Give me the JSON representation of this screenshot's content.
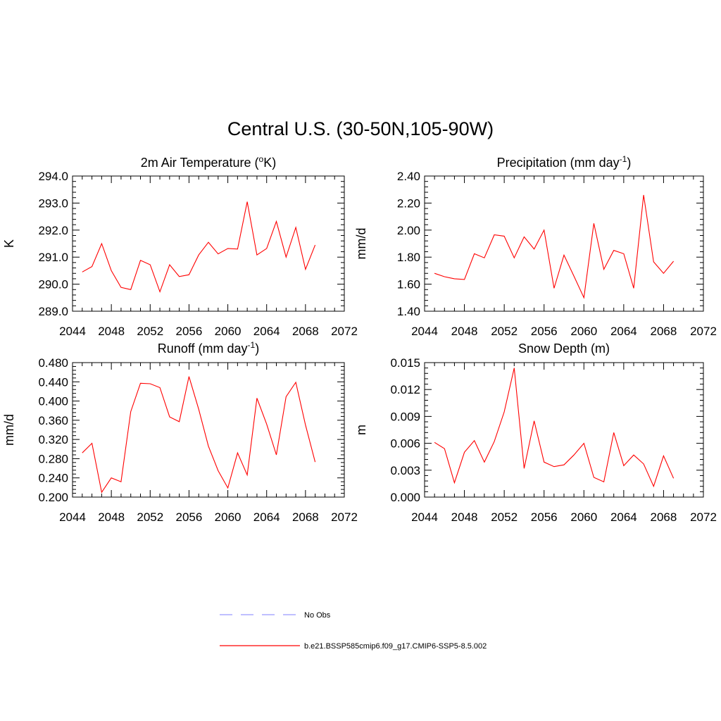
{
  "title": "Central U.S. (30-50N,105-90W)",
  "colors": {
    "model": "#ff0000",
    "obs": "#9999ff",
    "axis": "#000000"
  },
  "legend": [
    {
      "label": "No Obs",
      "style": "dashed",
      "color": "#9999ff"
    },
    {
      "label": "b.e21.BSSP585cmip6.f09_g17.CMIP6-SSP5-8.5.002",
      "style": "solid",
      "color": "#ff0000"
    }
  ],
  "chart_data": [
    {
      "type": "line",
      "title": "2m Air Temperature (",
      "title_sup": "o",
      "title_after": "K)",
      "ylabel": "K",
      "xlim": [
        2044,
        2072
      ],
      "ylim": [
        289.0,
        294.0
      ],
      "xticks": [
        2044,
        2048,
        2052,
        2056,
        2060,
        2064,
        2068,
        2072
      ],
      "yticks": [
        "289.0",
        "290.0",
        "291.0",
        "292.0",
        "293.0",
        "294.0"
      ],
      "x": [
        2045,
        2046,
        2047,
        2048,
        2049,
        2050,
        2051,
        2052,
        2053,
        2054,
        2055,
        2056,
        2057,
        2058,
        2059,
        2060,
        2061,
        2062,
        2063,
        2064,
        2065,
        2066,
        2067,
        2068,
        2069
      ],
      "series": [
        {
          "values": [
            290.45,
            290.65,
            291.5,
            290.5,
            289.88,
            289.8,
            290.88,
            290.72,
            289.72,
            290.72,
            290.28,
            290.35,
            291.08,
            291.55,
            291.12,
            291.32,
            291.3,
            293.05,
            291.08,
            291.32,
            292.32,
            291.0,
            292.1,
            290.55,
            291.45
          ]
        }
      ]
    },
    {
      "type": "line",
      "title": "Precipitation (mm day",
      "title_sup": "-1",
      "title_after": ")",
      "ylabel": "mm/d",
      "xlim": [
        2044,
        2072
      ],
      "ylim": [
        1.4,
        2.4
      ],
      "xticks": [
        2044,
        2048,
        2052,
        2056,
        2060,
        2064,
        2068,
        2072
      ],
      "yticks": [
        "1.40",
        "1.60",
        "1.80",
        "2.00",
        "2.20",
        "2.40"
      ],
      "x": [
        2045,
        2046,
        2047,
        2048,
        2049,
        2050,
        2051,
        2052,
        2053,
        2054,
        2055,
        2056,
        2057,
        2058,
        2059,
        2060,
        2061,
        2062,
        2063,
        2064,
        2065,
        2066,
        2067,
        2068,
        2069
      ],
      "series": [
        {
          "values": [
            1.68,
            1.655,
            1.64,
            1.635,
            1.825,
            1.795,
            1.965,
            1.955,
            1.795,
            1.95,
            1.86,
            2.0,
            1.57,
            1.815,
            1.66,
            1.5,
            2.05,
            1.71,
            1.85,
            1.825,
            1.57,
            2.26,
            1.765,
            1.68,
            1.77
          ]
        }
      ]
    },
    {
      "type": "line",
      "title": "Runoff (mm day",
      "title_sup": "-1",
      "title_after": ")",
      "ylabel": "mm/d",
      "xlim": [
        2044,
        2072
      ],
      "ylim": [
        0.2,
        0.48
      ],
      "xticks": [
        2044,
        2048,
        2052,
        2056,
        2060,
        2064,
        2068,
        2072
      ],
      "yticks": [
        "0.200",
        "0.240",
        "0.280",
        "0.320",
        "0.360",
        "0.400",
        "0.440",
        "0.480"
      ],
      "x": [
        2045,
        2046,
        2047,
        2048,
        2049,
        2050,
        2051,
        2052,
        2053,
        2054,
        2055,
        2056,
        2057,
        2058,
        2059,
        2060,
        2061,
        2062,
        2063,
        2064,
        2065,
        2066,
        2067,
        2068,
        2069
      ],
      "series": [
        {
          "values": [
            0.292,
            0.312,
            0.21,
            0.24,
            0.232,
            0.378,
            0.437,
            0.436,
            0.428,
            0.367,
            0.357,
            0.451,
            0.383,
            0.306,
            0.255,
            0.219,
            0.292,
            0.246,
            0.406,
            0.352,
            0.288,
            0.409,
            0.439,
            0.35,
            0.273
          ]
        }
      ]
    },
    {
      "type": "line",
      "title": "Snow Depth (m)",
      "title_sup": "",
      "title_after": "",
      "ylabel": "m",
      "xlim": [
        2044,
        2072
      ],
      "ylim": [
        0.0,
        0.015
      ],
      "xticks": [
        2044,
        2048,
        2052,
        2056,
        2060,
        2064,
        2068,
        2072
      ],
      "yticks": [
        "0.000",
        "0.003",
        "0.006",
        "0.009",
        "0.012",
        "0.015"
      ],
      "x": [
        2045,
        2046,
        2047,
        2048,
        2049,
        2050,
        2051,
        2052,
        2053,
        2054,
        2055,
        2056,
        2057,
        2058,
        2059,
        2060,
        2061,
        2062,
        2063,
        2064,
        2065,
        2066,
        2067,
        2068,
        2069
      ],
      "series": [
        {
          "values": [
            0.0061,
            0.0054,
            0.0016,
            0.005,
            0.0063,
            0.0039,
            0.0062,
            0.0095,
            0.0144,
            0.0032,
            0.0085,
            0.0039,
            0.0034,
            0.0036,
            0.0047,
            0.006,
            0.0022,
            0.0017,
            0.0072,
            0.0035,
            0.0047,
            0.0037,
            0.0012,
            0.0046,
            0.0021
          ]
        }
      ]
    }
  ]
}
